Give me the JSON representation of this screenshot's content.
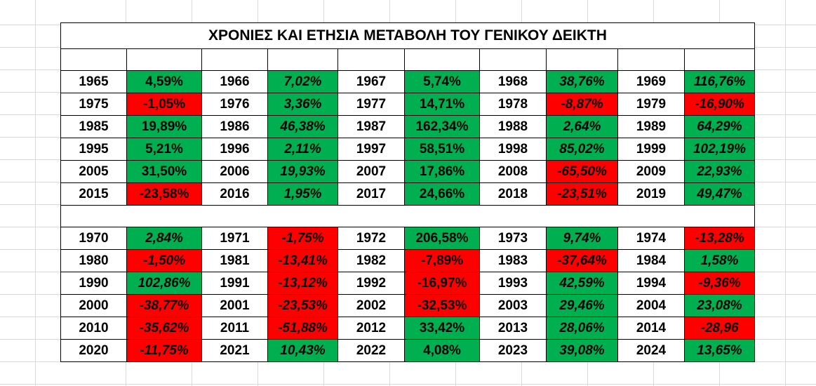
{
  "title": "ΧΡΟΝΙΕΣ ΚΑΙ ΕΤΗΣΙΑ ΜΕΤΑΒΟΛΗ ΤΟΥ ΓΕΝΙΚΟΥ ΔΕΙΚΤΗ",
  "blocks": [
    {
      "rows": [
        [
          "1965",
          "4,59%",
          "1966",
          "7,02%",
          "1967",
          "5,74%",
          "1968",
          "38,76%",
          "1969",
          "116,76%"
        ],
        [
          "1975",
          "-1,05%",
          "1976",
          "3,36%",
          "1977",
          "14,71%",
          "1978",
          "-8,87%",
          "1979",
          "-16,90%"
        ],
        [
          "1985",
          "19,89%",
          "1986",
          "46,38%",
          "1987",
          "162,34%",
          "1988",
          "2,64%",
          "1989",
          "64,29%"
        ],
        [
          "1995",
          "5,21%",
          "1996",
          "2,11%",
          "1997",
          "58,51%",
          "1998",
          "85,02%",
          "1999",
          "102,19%"
        ],
        [
          "2005",
          "31,50%",
          "2006",
          "19,93%",
          "2007",
          "17,86%",
          "2008",
          "-65,50%",
          "2009",
          "22,93%"
        ],
        [
          "2015",
          "-23,58%",
          "2016",
          "1,95%",
          "2017",
          "24,66%",
          "2018",
          "-23,51%",
          "2019",
          "49,47%"
        ]
      ]
    },
    {
      "rows": [
        [
          "1970",
          "2,84%",
          "1971",
          "-1,75%",
          "1972",
          "206,58%",
          "1973",
          "9,74%",
          "1974",
          "-13,28%"
        ],
        [
          "1980",
          "-1,50%",
          "1981",
          "-13,41%",
          "1982",
          "-7,89%",
          "1983",
          "-37,64%",
          "1984",
          "1,58%"
        ],
        [
          "1990",
          "102,86%",
          "1991",
          "-13,12%",
          "1992",
          "-16,97%",
          "1993",
          "42,59%",
          "1994",
          "-9,36%"
        ],
        [
          "2000",
          "-38,77%",
          "2001",
          "-23,53%",
          "2002",
          "-32,53%",
          "2003",
          "29,46%",
          "2004",
          "23,08%"
        ],
        [
          "2010",
          "-35,62%",
          "2011",
          "-51,88%",
          "2012",
          "33,42%",
          "2013",
          "28,06%",
          "2014",
          "-28,96"
        ],
        [
          "2020",
          "-11,75%",
          "2021",
          "10,43%",
          "2022",
          "4,08%",
          "2023",
          "39,08%",
          "2024",
          "13,65%"
        ]
      ]
    }
  ]
}
